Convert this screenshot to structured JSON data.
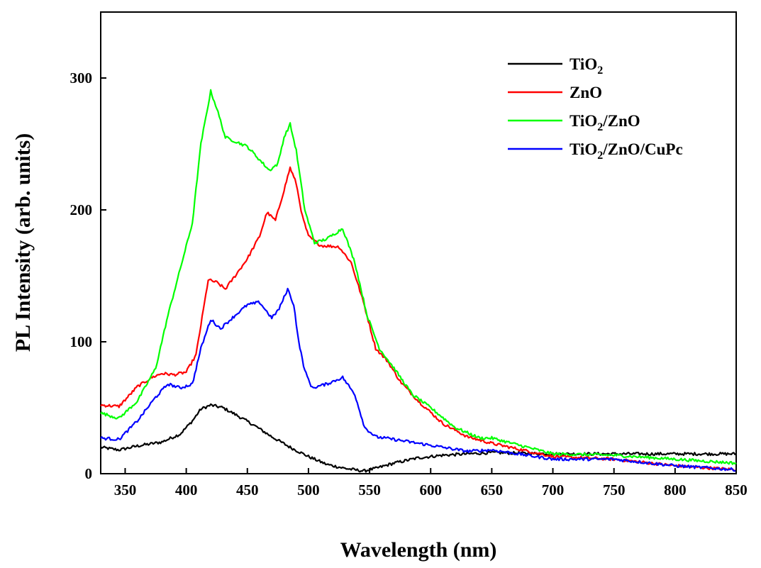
{
  "chart_data": {
    "type": "line",
    "title": "",
    "xlabel": "Wavelength (nm)",
    "ylabel": "PL Intensity (arb. units)",
    "xlim": [
      330,
      850
    ],
    "ylim": [
      0,
      350
    ],
    "xticks": [
      350,
      400,
      450,
      500,
      550,
      600,
      650,
      700,
      750,
      800,
      850
    ],
    "yticks": [
      0,
      100,
      200,
      300
    ],
    "xtick_labels": [
      "350",
      "400",
      "450",
      "500",
      "550",
      "600",
      "650",
      "700",
      "750",
      "800",
      "850"
    ],
    "ytick_labels": [
      "0",
      "100",
      "200",
      "300"
    ],
    "grid": false,
    "legend_position": "top-right",
    "series": [
      {
        "name": "TiO2",
        "label_main": "TiO",
        "label_sub": "2",
        "label_rest": "",
        "color": "#000000",
        "x": [
          330,
          345,
          360,
          380,
          395,
          405,
          412,
          420,
          430,
          440,
          455,
          470,
          485,
          500,
          515,
          530,
          545,
          555,
          570,
          590,
          610,
          630,
          650,
          700,
          750,
          800,
          850
        ],
        "y": [
          20,
          18,
          21,
          24,
          30,
          40,
          49,
          52,
          50,
          45,
          37,
          28,
          20,
          13,
          7,
          4,
          2,
          4,
          8,
          12,
          14,
          15,
          16,
          15,
          15,
          15,
          15
        ]
      },
      {
        "name": "ZnO",
        "label_main": "ZnO",
        "label_sub": "",
        "label_rest": "",
        "color": "#ff0000",
        "x": [
          330,
          345,
          360,
          372,
          380,
          390,
          400,
          408,
          418,
          425,
          432,
          440,
          450,
          460,
          466,
          473,
          480,
          485,
          490,
          495,
          500,
          510,
          525,
          535,
          545,
          555,
          565,
          575,
          590,
          610,
          630,
          650,
          700,
          750,
          800,
          850
        ],
        "y": [
          52,
          51,
          66,
          73,
          76,
          75,
          77,
          90,
          147,
          145,
          140,
          150,
          163,
          180,
          198,
          192,
          215,
          232,
          220,
          195,
          180,
          173,
          172,
          160,
          130,
          95,
          85,
          70,
          55,
          38,
          28,
          23,
          13,
          11,
          6,
          3
        ]
      },
      {
        "name": "TiO2/ZnO",
        "label_main": "TiO",
        "label_sub": "2",
        "label_rest": "/ZnO",
        "color": "#00ff00",
        "x": [
          330,
          345,
          360,
          375,
          385,
          395,
          405,
          412,
          420,
          425,
          432,
          440,
          450,
          460,
          468,
          475,
          480,
          485,
          490,
          497,
          505,
          515,
          528,
          538,
          548,
          558,
          570,
          585,
          600,
          620,
          640,
          650,
          700,
          750,
          800,
          850
        ],
        "y": [
          46,
          42,
          55,
          80,
          120,
          155,
          190,
          250,
          290,
          277,
          255,
          252,
          248,
          238,
          230,
          235,
          255,
          265,
          245,
          200,
          175,
          178,
          186,
          160,
          120,
          95,
          80,
          60,
          50,
          35,
          27,
          27,
          15,
          14,
          11,
          8
        ]
      },
      {
        "name": "TiO2/ZnO/CuPc",
        "label_main": "TiO",
        "label_sub": "2",
        "label_rest": "/ZnO/CuPc",
        "color": "#0000ff",
        "x": [
          330,
          345,
          360,
          375,
          385,
          395,
          405,
          412,
          420,
          428,
          440,
          450,
          460,
          470,
          476,
          483,
          488,
          492,
          497,
          503,
          515,
          528,
          538,
          546,
          555,
          570,
          590,
          610,
          630,
          650,
          700,
          750,
          800,
          850
        ],
        "y": [
          27,
          26,
          40,
          58,
          68,
          65,
          68,
          95,
          117,
          110,
          120,
          128,
          130,
          118,
          125,
          140,
          128,
          100,
          78,
          65,
          68,
          73,
          60,
          35,
          28,
          26,
          23,
          20,
          17,
          18,
          11,
          11,
          6,
          3
        ]
      }
    ]
  }
}
